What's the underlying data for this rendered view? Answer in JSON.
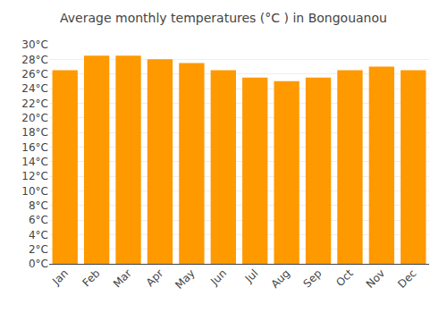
{
  "chart_data": {
    "type": "bar",
    "title": "Average monthly temperatures (°C ) in Bongouanou",
    "categories": [
      "Jan",
      "Feb",
      "Mar",
      "Apr",
      "May",
      "Jun",
      "Jul",
      "Aug",
      "Sep",
      "Oct",
      "Nov",
      "Dec"
    ],
    "values": [
      26.5,
      28.5,
      28.5,
      28.0,
      27.5,
      26.5,
      25.5,
      25.0,
      25.5,
      26.5,
      27.0,
      26.5
    ],
    "color": "#FF9900",
    "ylim": [
      0,
      30
    ],
    "yticks": [
      {
        "value": 0,
        "label": "0°C"
      },
      {
        "value": 2,
        "label": "2°C"
      },
      {
        "value": 4,
        "label": "4°C"
      },
      {
        "value": 6,
        "label": "6°C"
      },
      {
        "value": 8,
        "label": "8°C"
      },
      {
        "value": 10,
        "label": "10°C"
      },
      {
        "value": 12,
        "label": "12°C"
      },
      {
        "value": 14,
        "label": "14°C"
      },
      {
        "value": 16,
        "label": "16°C"
      },
      {
        "value": 18,
        "label": "18°C"
      },
      {
        "value": 20,
        "label": "20°C"
      },
      {
        "value": 22,
        "label": "22°C"
      },
      {
        "value": 24,
        "label": "24°C"
      },
      {
        "value": 26,
        "label": "26°C"
      },
      {
        "value": 28,
        "label": "28°C"
      },
      {
        "value": 30,
        "label": "30°C"
      }
    ],
    "grid": true
  }
}
